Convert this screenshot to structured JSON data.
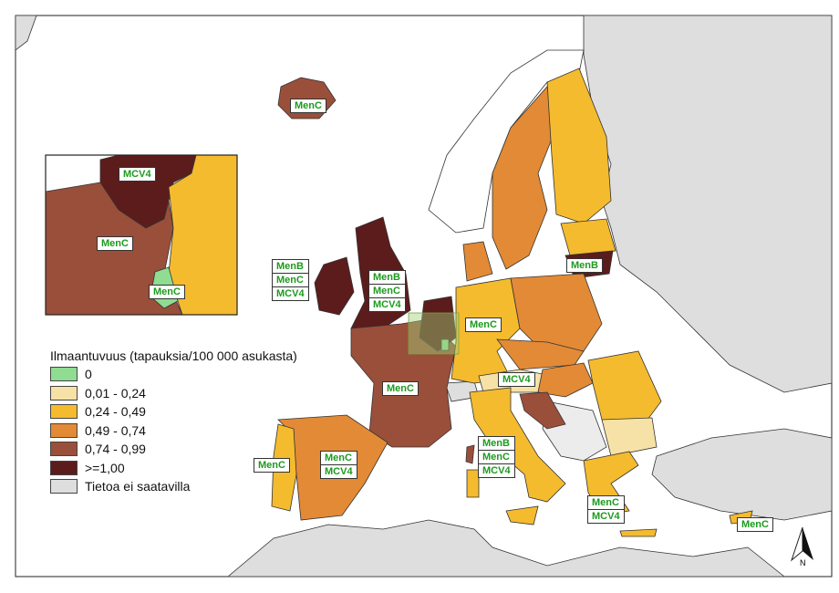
{
  "legend": {
    "title": "Ilmaantuvuus (tapauksia/100 000 asukasta)",
    "classes": [
      {
        "label": "0",
        "color": "#8fdc92"
      },
      {
        "label": "0,01 - 0,24",
        "color": "#f6e2a6"
      },
      {
        "label": "0,24 - 0,49",
        "color": "#f4bb2e"
      },
      {
        "label": "0,49 - 0,74",
        "color": "#e28a36"
      },
      {
        "label": "0,74 - 0,99",
        "color": "#9a4f3a"
      },
      {
        "label": ">=1,00",
        "color": "#5c1c1c"
      },
      {
        "label": "Tietoa ei saatavilla",
        "color": "#dedede"
      }
    ]
  },
  "labels": {
    "iceland": [
      "MenC"
    ],
    "inset_netherlands": [
      "MCV4"
    ],
    "inset_belgium": [
      "MenC"
    ],
    "inset_luxembourg": [
      "MenC"
    ],
    "ireland": [
      "MenB",
      "MenC",
      "MCV4"
    ],
    "uk": [
      "MenB",
      "MenC",
      "MCV4"
    ],
    "germany": [
      "MenC"
    ],
    "lithuania": [
      "MenB"
    ],
    "france": [
      "MenC"
    ],
    "austria": [
      "MCV4"
    ],
    "italy": [
      "MenB",
      "MenC",
      "MCV4"
    ],
    "spain": [
      "MenC",
      "MCV4"
    ],
    "portugal": [
      "MenC"
    ],
    "greece": [
      "MenC",
      "MCV4"
    ],
    "cyprus": [
      "MenC"
    ]
  },
  "north_arrow": "N"
}
